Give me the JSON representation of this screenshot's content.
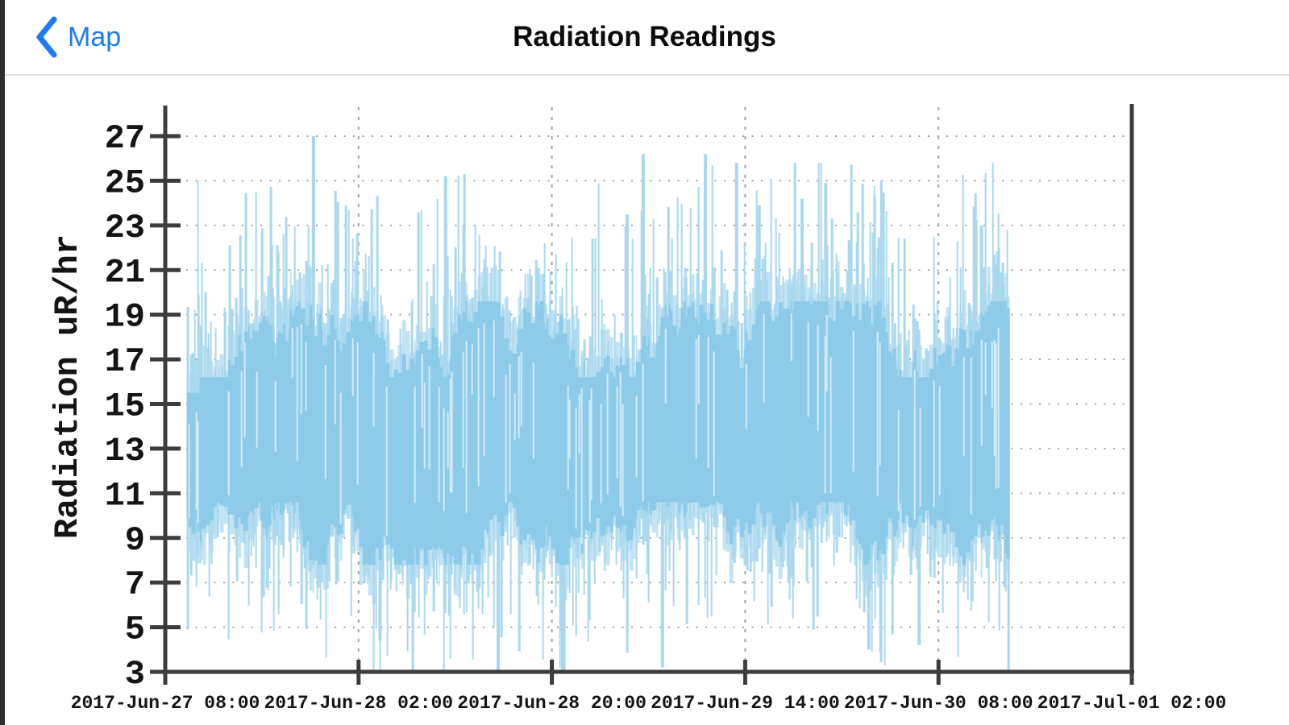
{
  "app": {
    "back_label": "Map",
    "title": "Radiation Readings",
    "accent_color": "#1E7BF6",
    "title_color": "#0B0B0B",
    "nav_divider_color": "#E1E1E1",
    "bezel_color": "#2E2E2E",
    "background_color": "#FFFFFF"
  },
  "chart_data": {
    "type": "impulse-line",
    "title": "",
    "xlabel": "",
    "ylabel": "Radiation uR/hr",
    "yticks": [
      3,
      5,
      7,
      9,
      11,
      13,
      15,
      17,
      19,
      21,
      23,
      25,
      27
    ],
    "ylim": [
      3,
      28.3
    ],
    "xtick_labels": [
      "2017-Jun-27 08:00",
      "2017-Jun-28 02:00",
      "2017-Jun-28 20:00",
      "2017-Jun-29 14:00",
      "2017-Jun-30 08:00",
      "2017-Jul-01 02:00"
    ],
    "x_tick_interval_hours": 18,
    "x_total_hours": 90,
    "grid": "dotted",
    "legend": "none",
    "data_start_hours": 2.0,
    "data_end_hours": 78.6,
    "value_unit": "uR/hr",
    "noise_model": {
      "description": "dense noisy radiation readings; solid band with light excursions",
      "core_band_top_range": [
        16.2,
        19.6
      ],
      "core_band_bottom_range": [
        7.8,
        10.6
      ],
      "typical_max_band": [
        17,
        22
      ],
      "typical_min_band": [
        5.5,
        9
      ],
      "mean_level": 13,
      "value_min": 3,
      "value_max": 27,
      "rare_peak_prob": 0.02,
      "rare_dip_prob": 0.015
    },
    "notable_peaks": [
      {
        "t_hours": 13.8,
        "value": 27.0
      },
      {
        "t_hours": 26.1,
        "value": 25.2
      },
      {
        "t_hours": 43.0,
        "value": 23.5
      },
      {
        "t_hours": 44.5,
        "value": 26.2
      },
      {
        "t_hours": 50.3,
        "value": 26.2
      },
      {
        "t_hours": 53.2,
        "value": 25.8
      },
      {
        "t_hours": 55.3,
        "value": 23.9
      },
      {
        "t_hours": 59.3,
        "value": 24.2
      },
      {
        "t_hours": 61.5,
        "value": 24.9
      },
      {
        "t_hours": 76.0,
        "value": 23.0
      }
    ],
    "notable_dips": [
      {
        "t_hours": 20.0,
        "value": 4.4
      },
      {
        "t_hours": 31.0,
        "value": 3.0
      },
      {
        "t_hours": 37.0,
        "value": 3.0
      },
      {
        "t_hours": 46.3,
        "value": 3.2
      },
      {
        "t_hours": 65.5,
        "value": 4.0
      },
      {
        "t_hours": 70.2,
        "value": 4.2
      }
    ],
    "colors": {
      "series_core": "#8BCAE8",
      "series_light": "#C2E3F3",
      "series_spike": "#A9D8EE",
      "series_streak": "#D4EBF7",
      "axis": "#3C3C3C",
      "grid": "#A4A4A4",
      "tick_label": "#141414"
    }
  }
}
